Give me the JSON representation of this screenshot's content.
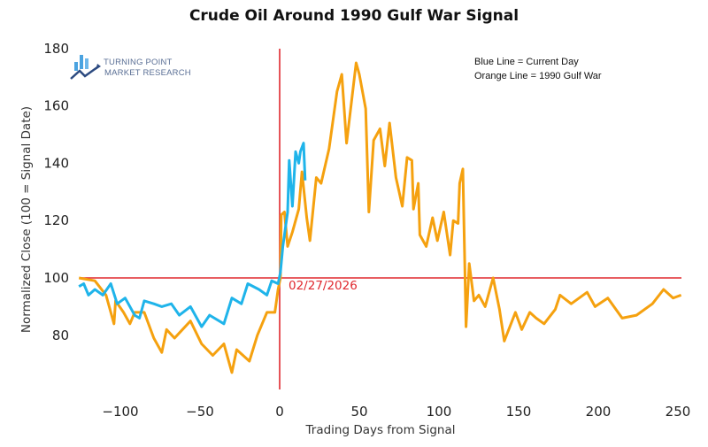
{
  "chart_data": {
    "type": "line",
    "title": "Crude Oil Around 1990 Gulf War Signal",
    "xlabel": "Trading Days from Signal",
    "ylabel": "Normalized Close (100 = Signal Date)",
    "xlim": [
      -129,
      255
    ],
    "ylim": [
      61,
      181
    ],
    "xticks": [
      -100,
      -50,
      0,
      50,
      100,
      150,
      200,
      250
    ],
    "yticks": [
      80,
      100,
      120,
      140,
      160,
      180
    ],
    "grid": false,
    "annotations": {
      "signal_label": "02/27/2026",
      "legend_note_1": "Blue Line = Current Day",
      "legend_note_2": "Orange Line = 1990 Gulf War",
      "reference_y": 100,
      "reference_x": 0,
      "reference_color": "#e0282e"
    },
    "logo": {
      "line1": "TURNING POINT",
      "line2": "MARKET RESEARCH"
    },
    "series": [
      {
        "key": "orange",
        "color": "#f5a10f",
        "x": [
          -126,
          -116,
          -109,
          -104,
          -103,
          -98,
          -94,
          -91,
          -85,
          -79,
          -74,
          -71,
          -66,
          -61,
          -56,
          -49,
          -42,
          -35,
          -30,
          -27,
          -19,
          -14,
          -8,
          -3,
          -1,
          0.5,
          1,
          3,
          5,
          8,
          12,
          14,
          17,
          19,
          23,
          26,
          31,
          36,
          39,
          42,
          45,
          48,
          50,
          54,
          56,
          59,
          63,
          66,
          69,
          73,
          77,
          80,
          83,
          84,
          87,
          88,
          92,
          96,
          99,
          103,
          107,
          109,
          112,
          113,
          115,
          117,
          119,
          122,
          125,
          129,
          134,
          138,
          141,
          148,
          152,
          157,
          161,
          166,
          173,
          176,
          183,
          193,
          198,
          206,
          215,
          224,
          234,
          241,
          247,
          252
        ],
        "y": [
          100,
          99,
          94,
          84,
          92,
          88,
          84,
          88,
          88,
          79,
          74,
          82,
          79,
          82,
          85,
          77,
          73,
          77,
          67,
          75,
          71,
          80,
          88,
          88,
          96,
          100,
          122,
          123,
          111,
          116,
          124,
          137,
          121,
          113,
          135,
          133,
          145,
          165,
          171,
          147,
          161,
          175,
          171,
          159,
          123,
          148,
          152,
          139,
          154,
          135,
          125,
          142,
          141,
          124,
          133,
          115,
          111,
          121,
          113,
          123,
          108,
          120,
          119,
          133,
          138,
          83,
          105,
          92,
          94,
          90,
          100,
          89,
          78,
          88,
          82,
          88,
          86,
          84,
          89,
          94,
          91,
          95,
          90,
          93,
          86,
          87,
          91,
          96,
          93,
          94
        ]
      },
      {
        "key": "blue",
        "color": "#1fb4ea",
        "x": [
          -126,
          -123,
          -120,
          -116,
          -111,
          -106,
          -102,
          -97,
          -91,
          -88,
          -85,
          -79,
          -74,
          -68,
          -63,
          -56,
          -49,
          -44,
          -35,
          -30,
          -24,
          -20,
          -13,
          -8,
          -5,
          -1,
          0.5,
          2,
          5,
          6,
          8,
          10,
          12,
          13,
          15,
          16
        ],
        "y": [
          97,
          98,
          94,
          96,
          94,
          98,
          91,
          93,
          87,
          86,
          92,
          91,
          90,
          91,
          87,
          90,
          83,
          87,
          84,
          93,
          91,
          98,
          96,
          94,
          99,
          98,
          102,
          111,
          123,
          141,
          125,
          144,
          140,
          144,
          147,
          134
        ]
      }
    ]
  }
}
